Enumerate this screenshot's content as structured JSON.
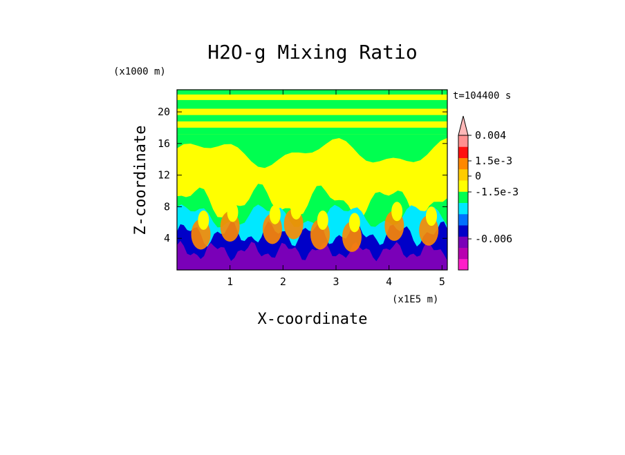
{
  "chart_data": {
    "type": "heatmap",
    "title": "H2O-g Mixing Ratio",
    "xlabel": "X-coordinate",
    "ylabel": "Z-coordinate",
    "x_unit": "(x1E5 m)",
    "y_unit": "(x1000 m)",
    "time_label": "t=104400 s",
    "xlim": [
      0,
      5.1
    ],
    "ylim": [
      0,
      22.8
    ],
    "x_ticks": [
      "1",
      "2",
      "3",
      "4",
      "5"
    ],
    "x_tick_values": [
      1,
      2,
      3,
      4,
      5
    ],
    "y_ticks": [
      "4",
      "8",
      "12",
      "16",
      "20"
    ],
    "y_tick_values": [
      4,
      8,
      12,
      16,
      20
    ],
    "colorbar": {
      "levels": [
        {
          "color": "#ff1fc8"
        },
        {
          "color": "#b800b0"
        },
        {
          "color": "#7a00b8"
        },
        {
          "color": "#0000c8"
        },
        {
          "color": "#0070ff"
        },
        {
          "color": "#00e8ff"
        },
        {
          "color": "#00ff50"
        },
        {
          "color": "#ffff00"
        },
        {
          "color": "#ffcc00"
        },
        {
          "color": "#ff8800"
        },
        {
          "color": "#ff1010"
        },
        {
          "color": "#ff9090"
        },
        {
          "color": "#ffb8b8"
        }
      ],
      "labels": [
        "0.004",
        "1.5e-3",
        "0",
        "-1.5e-3",
        "-0.006"
      ],
      "label_values": [
        0.004,
        0.0015,
        0,
        -0.0015,
        -0.006
      ]
    },
    "field_palette": {
      "deep_dry": "#7a00b8",
      "dry": "#0000c8",
      "slightly_dry": "#00e8ff",
      "near_zero": "#00ff50",
      "slightly_moist": "#ffff00",
      "moist": "#ff8800",
      "background_upper": "#00ff50"
    }
  }
}
